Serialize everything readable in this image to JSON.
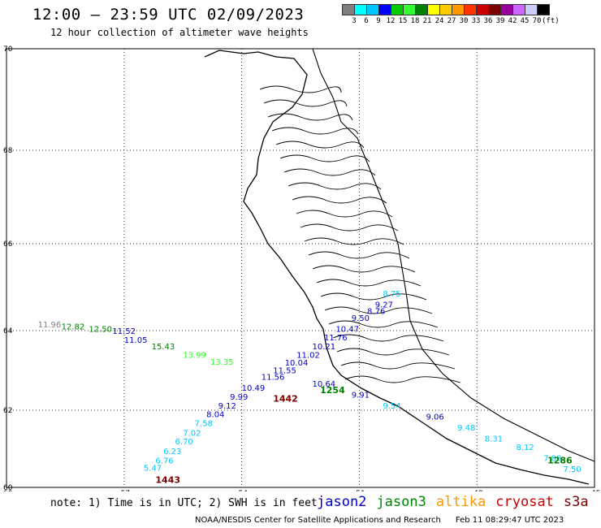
{
  "header": {
    "title": "12:00 — 23:59 UTC 02/09/2023",
    "subtitle": "12 hour collection of altimeter wave heights"
  },
  "scale": {
    "colors": [
      "#7f7f7f",
      "#00ffff",
      "#00c8ff",
      "#0000ff",
      "#00cc00",
      "#33ff33",
      "#008000",
      "#ffff00",
      "#ffcc00",
      "#ff9900",
      "#ff3300",
      "#cc0000",
      "#800000",
      "#990099",
      "#cc66ff",
      "#ccccff",
      "#000000"
    ],
    "labels": [
      "3",
      "6",
      "9",
      "12",
      "15",
      "18",
      "21",
      "24",
      "27",
      "30",
      "33",
      "36",
      "39",
      "42",
      "45",
      "70",
      "(ft)"
    ]
  },
  "map": {
    "lon_ticks": [
      "-60",
      "-57",
      "-54",
      "-51",
      "-48",
      "-45"
    ],
    "lat_ticks": [
      "70",
      "68",
      "66",
      "64",
      "62",
      "60"
    ]
  },
  "chart_data": {
    "type": "scatter",
    "xlim": [
      -60,
      -45
    ],
    "ylim": [
      60,
      70
    ],
    "colors": {
      "jason2": "#0000cc",
      "jason3": "#008800",
      "altika": "#ff9900",
      "cryosat": "#cc0000",
      "s3a": "#800000"
    },
    "tracks": [
      {
        "name": "track-a",
        "color": "#0000cc",
        "points": [
          {
            "lon": -50.4,
            "lat": 64.35,
            "label": "8.75",
            "color": "#00c8ff"
          },
          {
            "lon": -50.6,
            "lat": 64.1,
            "label": "9.27"
          },
          {
            "lon": -50.8,
            "lat": 63.95,
            "label": "8.76"
          },
          {
            "lon": -51.2,
            "lat": 63.8,
            "label": "9.50"
          },
          {
            "lon": -51.6,
            "lat": 63.55,
            "label": "10.47"
          },
          {
            "lon": -51.9,
            "lat": 63.35,
            "label": "11.76"
          },
          {
            "lon": -52.2,
            "lat": 63.15,
            "label": "10.21"
          },
          {
            "lon": -52.6,
            "lat": 62.95,
            "label": "11.02"
          },
          {
            "lon": -52.9,
            "lat": 62.78,
            "label": "10.04"
          },
          {
            "lon": -53.2,
            "lat": 62.6,
            "label": "11.55"
          },
          {
            "lon": -53.5,
            "lat": 62.45,
            "label": "11.56"
          },
          {
            "lon": -54.0,
            "lat": 62.2,
            "label": "10.49"
          },
          {
            "lon": -54.3,
            "lat": 62.0,
            "label": "9.99"
          },
          {
            "lon": -54.6,
            "lat": 61.8,
            "label": "9.12"
          }
        ]
      },
      {
        "name": "track-b",
        "color": "#00c8ff",
        "points": [
          {
            "lon": -54.9,
            "lat": 61.6,
            "label": "8.04",
            "color": "#0000cc"
          },
          {
            "lon": -55.2,
            "lat": 61.4,
            "label": "7.58"
          },
          {
            "lon": -55.5,
            "lat": 61.18,
            "label": "7.02"
          },
          {
            "lon": -55.7,
            "lat": 60.98,
            "label": "6.70"
          },
          {
            "lon": -56.0,
            "lat": 60.76,
            "label": "6.23"
          },
          {
            "lon": -56.2,
            "lat": 60.55,
            "label": "6.76"
          },
          {
            "lon": -56.5,
            "lat": 60.38,
            "label": "5.47"
          }
        ]
      },
      {
        "name": "track-c",
        "color": "#33ff33",
        "points": [
          {
            "lon": -59.2,
            "lat": 63.65,
            "label": "11.96",
            "color": "#7f7f7f"
          },
          {
            "lon": -58.6,
            "lat": 63.6,
            "label": "12.82",
            "color": "#008000"
          },
          {
            "lon": -57.9,
            "lat": 63.55,
            "label": "12.50",
            "color": "#008000"
          },
          {
            "lon": -57.3,
            "lat": 63.5,
            "label": "11.52",
            "color": "#0000cc"
          },
          {
            "lon": -57.0,
            "lat": 63.3,
            "label": "11.05",
            "color": "#0000cc"
          },
          {
            "lon": -56.3,
            "lat": 63.15,
            "label": "15.43",
            "color": "#008000"
          },
          {
            "lon": -55.5,
            "lat": 62.95,
            "label": "13.99"
          },
          {
            "lon": -54.8,
            "lat": 62.8,
            "label": "13.35"
          }
        ]
      },
      {
        "name": "track-d",
        "color": "#00c8ff",
        "points": [
          {
            "lon": -52.2,
            "lat": 62.3,
            "label": "10.64",
            "color": "#0000cc"
          },
          {
            "lon": -51.2,
            "lat": 62.05,
            "label": "9.91",
            "color": "#0000cc"
          },
          {
            "lon": -50.4,
            "lat": 61.8,
            "label": "9.54"
          },
          {
            "lon": -49.3,
            "lat": 61.55,
            "label": "9.06",
            "color": "#0000cc"
          },
          {
            "lon": -48.5,
            "lat": 61.3,
            "label": "9.48"
          },
          {
            "lon": -47.8,
            "lat": 61.05,
            "label": "8.31"
          },
          {
            "lon": -47.0,
            "lat": 60.85,
            "label": "8.12"
          },
          {
            "lon": -46.3,
            "lat": 60.6,
            "label": "7.88"
          },
          {
            "lon": -45.8,
            "lat": 60.35,
            "label": "7.50"
          }
        ]
      }
    ],
    "markers": [
      {
        "lon": -52.0,
        "lat": 62.15,
        "label": "1254",
        "color": "#008000"
      },
      {
        "lon": -53.2,
        "lat": 61.95,
        "label": "1442",
        "color": "#800000"
      },
      {
        "lon": -56.2,
        "lat": 60.1,
        "label": "1443",
        "color": "#800000"
      },
      {
        "lon": -46.2,
        "lat": 60.55,
        "label": "1286",
        "color": "#008000"
      }
    ]
  },
  "footer": {
    "note": "note: 1) Time is in UTC; 2) SWH is in feet",
    "legend": [
      {
        "label": "jason2",
        "color": "#0000cc"
      },
      {
        "label": "jason3",
        "color": "#008800"
      },
      {
        "label": "altika",
        "color": "#ff9900"
      },
      {
        "label": "cryosat",
        "color": "#cc0000"
      },
      {
        "label": "s3a",
        "color": "#800000"
      }
    ],
    "credit": "NOAA/NESDIS Center for Satellite Applications and Research",
    "timestamp": "Feb 11 08:29:47 UTC 2023"
  }
}
